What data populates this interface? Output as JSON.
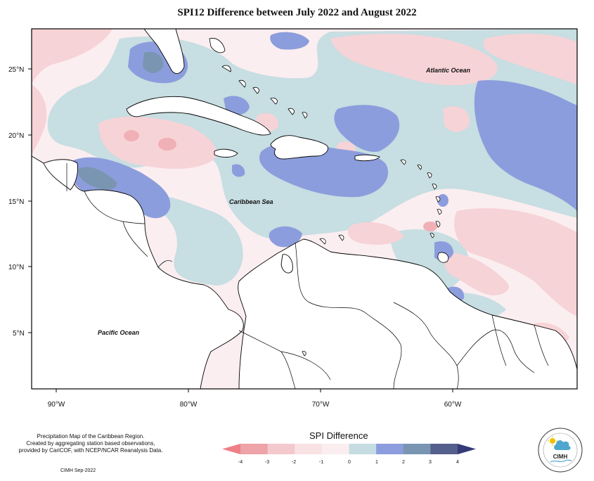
{
  "title": "SPI12 Difference between July 2022 and August 2022",
  "map": {
    "labels": {
      "atlantic": "Atlantic Ocean",
      "caribbean": "Caribbean Sea",
      "pacific": "Pacific Ocean"
    },
    "lat_ticks": [
      "25°N",
      "20°N",
      "15°N",
      "10°N",
      "5°N"
    ],
    "lon_ticks": [
      "90°W",
      "80°W",
      "70°W",
      "60°W"
    ]
  },
  "legend": {
    "title": "SPI Difference",
    "ticks": [
      "-4",
      "-3",
      "-2",
      "-1",
      "0",
      "1",
      "2",
      "3",
      "4"
    ],
    "colors": [
      "#ef7f86",
      "#eea3a8",
      "#f3c9cd",
      "#f8e2e4",
      "#fbeef0",
      "#c5dde2",
      "#8c9ddd",
      "#7a95b1",
      "#555f8c",
      "#353a78"
    ]
  },
  "caption": {
    "line1": "Precipitation Map of the Caribbean Region.",
    "line2": "Created by aggregating station based observations,",
    "line3": "provided by CariCOF, with NCEP/NCAR Reanalysis Data.",
    "credit": "CIMH Sep-2022"
  },
  "logo": {
    "text": "CIMH"
  }
}
